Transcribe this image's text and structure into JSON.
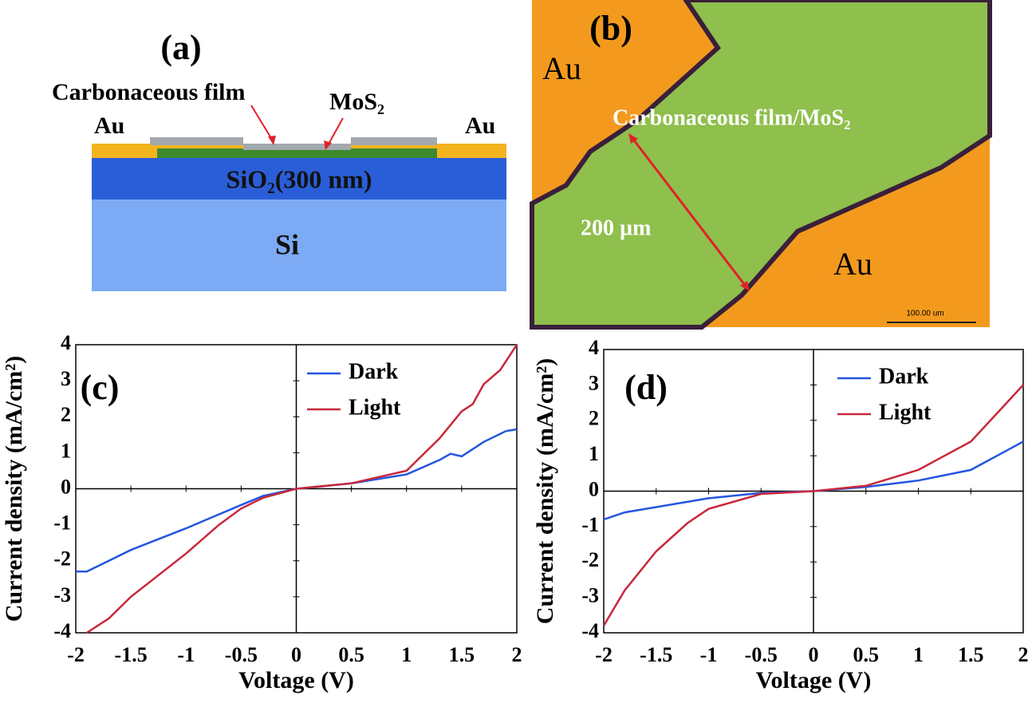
{
  "panel_a": {
    "label": "(a)",
    "film": "Carbonaceous film",
    "mos2": "MoS₂",
    "au_left": "Au",
    "au_right": "Au",
    "sio2": "SiO₂(300 nm)",
    "si": "Si"
  },
  "panel_b": {
    "label": "(b)",
    "au_top": "Au",
    "film": "Carbonaceous film/MoS₂",
    "width": "200 µm",
    "au_bottom": "Au",
    "scale": "100.00 um"
  },
  "chart_data": [
    {
      "type": "line",
      "panel_label": "(c)",
      "x_label": "Voltage (V)",
      "y_label": "Current density (mA/cm²)",
      "xlim": [
        -2,
        2
      ],
      "ylim": [
        -4,
        4
      ],
      "xticks": [
        -2,
        -1.5,
        -1,
        -0.5,
        0,
        0.5,
        1,
        1.5,
        2
      ],
      "yticks": [
        4,
        3,
        2,
        1,
        0,
        -1,
        -2,
        -3,
        -4
      ],
      "series": [
        {
          "name": "Dark",
          "color": "#2455e0",
          "x": [
            -2,
            -1.9,
            -1.8,
            -1.7,
            -1.5,
            -1,
            -0.5,
            -0.3,
            0,
            0.5,
            1,
            1.3,
            1.4,
            1.5,
            1.7,
            1.9,
            2
          ],
          "values": [
            -2.3,
            -2.3,
            -2.15,
            -2.0,
            -1.7,
            -1.1,
            -0.45,
            -0.2,
            0,
            0.15,
            0.4,
            0.8,
            0.97,
            0.9,
            1.3,
            1.6,
            1.65
          ]
        },
        {
          "name": "Light",
          "color": "#c8283a",
          "x": [
            -1.9,
            -1.7,
            -1.5,
            -1,
            -0.7,
            -0.5,
            -0.3,
            0,
            0.5,
            1,
            1.3,
            1.5,
            1.6,
            1.7,
            1.85,
            2
          ],
          "values": [
            -4,
            -3.6,
            -3.0,
            -1.8,
            -1.0,
            -0.55,
            -0.25,
            0,
            0.15,
            0.5,
            1.4,
            2.15,
            2.35,
            2.9,
            3.3,
            4
          ]
        }
      ]
    },
    {
      "type": "line",
      "panel_label": "(d)",
      "x_label": "Voltage (V)",
      "y_label": "Current density (mA/cm²)",
      "xlim": [
        -2,
        2
      ],
      "ylim": [
        -4,
        4
      ],
      "xticks": [
        -2,
        -1.5,
        -1,
        -0.5,
        0,
        0.5,
        1,
        1.5,
        2
      ],
      "yticks": [
        4,
        3,
        2,
        1,
        0,
        -1,
        -2,
        -3,
        -4
      ],
      "series": [
        {
          "name": "Dark",
          "color": "#2455e0",
          "x": [
            -2,
            -1.8,
            -1.5,
            -1,
            -0.5,
            0,
            0.5,
            1,
            1.5,
            2
          ],
          "values": [
            -0.8,
            -0.6,
            -0.45,
            -0.2,
            -0.05,
            0,
            0.12,
            0.3,
            0.6,
            1.4
          ]
        },
        {
          "name": "Light",
          "color": "#c8283a",
          "x": [
            -2,
            -1.8,
            -1.5,
            -1.2,
            -1,
            -0.5,
            0,
            0.5,
            1,
            1.5,
            2
          ],
          "values": [
            -3.8,
            -2.8,
            -1.7,
            -0.9,
            -0.5,
            -0.08,
            0,
            0.15,
            0.6,
            1.4,
            3.0
          ]
        }
      ]
    }
  ]
}
